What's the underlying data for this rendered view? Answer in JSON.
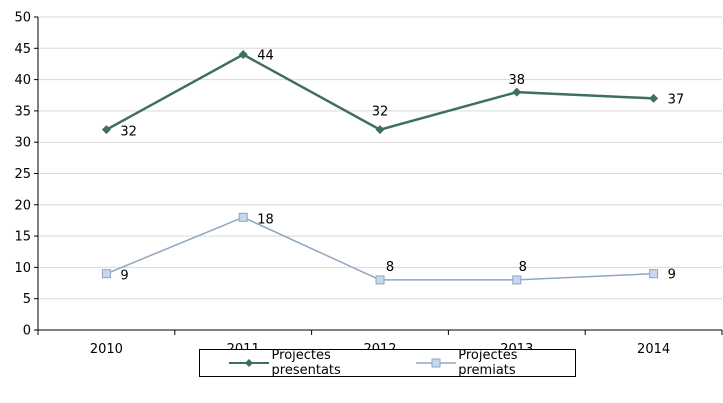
{
  "chart_data": {
    "type": "line",
    "title": "",
    "xlabel": "",
    "ylabel": "",
    "categories": [
      "2010",
      "2011",
      "2012",
      "2013",
      "2014"
    ],
    "ylim": [
      0,
      50
    ],
    "yticks": [
      0,
      5,
      10,
      15,
      20,
      25,
      30,
      35,
      40,
      45,
      50
    ],
    "grid": "horizontal",
    "legend_position": "bottom",
    "series": [
      {
        "name": "Projectes presentats",
        "values": [
          32,
          44,
          32,
          38,
          37
        ],
        "color": "#3f6f5d",
        "marker": "diamond"
      },
      {
        "name": "Projectes premiats",
        "values": [
          9,
          18,
          8,
          8,
          9
        ],
        "color": "#8fa6c2",
        "marker": "square",
        "marker_fill": "#c5d8ef"
      }
    ]
  }
}
